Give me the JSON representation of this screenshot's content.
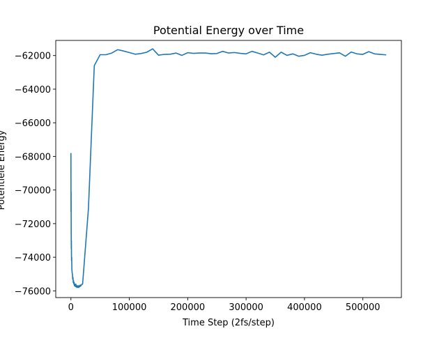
{
  "chart_data": {
    "type": "line",
    "title": "Potential Energy over Time",
    "xlabel": "Time Step (2fs/step)",
    "ylabel": "Potentiele Energy",
    "xlim": [
      -26000,
      566000
    ],
    "ylim": [
      -76400,
      -61100
    ],
    "x_ticks": [
      0,
      100000,
      200000,
      300000,
      400000,
      500000
    ],
    "y_ticks": [
      -76000,
      -74000,
      -72000,
      -70000,
      -68000,
      -66000,
      -64000,
      -62000
    ],
    "grid": false,
    "line_color": "#1f77b4",
    "series": [
      {
        "x": [
          0,
          150,
          300,
          450,
          600,
          800,
          1000,
          1300,
          1600,
          2000,
          2500,
          3000,
          3500,
          4000,
          4500,
          5000,
          5500,
          6000,
          6500,
          7000,
          7500,
          8000,
          8500,
          9000,
          9500,
          10000,
          10500,
          11000,
          11500,
          12000,
          12500,
          13000,
          13500,
          14000,
          14500,
          15000,
          15500,
          16000,
          17000,
          18000,
          19000,
          20000,
          30000,
          40000,
          50000,
          60000,
          70000,
          80000,
          90000,
          100000,
          110000,
          120000,
          130000,
          140000,
          150000,
          160000,
          170000,
          180000,
          190000,
          200000,
          210000,
          220000,
          230000,
          240000,
          250000,
          260000,
          270000,
          280000,
          290000,
          300000,
          310000,
          320000,
          330000,
          340000,
          350000,
          360000,
          370000,
          380000,
          390000,
          400000,
          410000,
          420000,
          430000,
          440000,
          450000,
          460000,
          470000,
          480000,
          490000,
          500000,
          510000,
          520000,
          530000,
          540000
        ],
        "y": [
          -67800,
          -71300,
          -70100,
          -72200,
          -73500,
          -73000,
          -74200,
          -74000,
          -74700,
          -74900,
          -75000,
          -75300,
          -75200,
          -75500,
          -75400,
          -75600,
          -75500,
          -75700,
          -75600,
          -75700,
          -75650,
          -75750,
          -75600,
          -75750,
          -75700,
          -75800,
          -75700,
          -75750,
          -75700,
          -75800,
          -75750,
          -75700,
          -75800,
          -75700,
          -75750,
          -75700,
          -75750,
          -75650,
          -75700,
          -75650,
          -75600,
          -75600,
          -71100,
          -62600,
          -61950,
          -61950,
          -61850,
          -61650,
          -61730,
          -61820,
          -61920,
          -61880,
          -61800,
          -61600,
          -61980,
          -61930,
          -61920,
          -61850,
          -61990,
          -61830,
          -61870,
          -61850,
          -61850,
          -61890,
          -61880,
          -61750,
          -61850,
          -61820,
          -61870,
          -61900,
          -61750,
          -61850,
          -61960,
          -61800,
          -62100,
          -61800,
          -61990,
          -61900,
          -62040,
          -61990,
          -61830,
          -61920,
          -61980,
          -61920,
          -61880,
          -61840,
          -62040,
          -61790,
          -61900,
          -61930,
          -61770,
          -61900,
          -61930,
          -61960
        ]
      }
    ]
  }
}
